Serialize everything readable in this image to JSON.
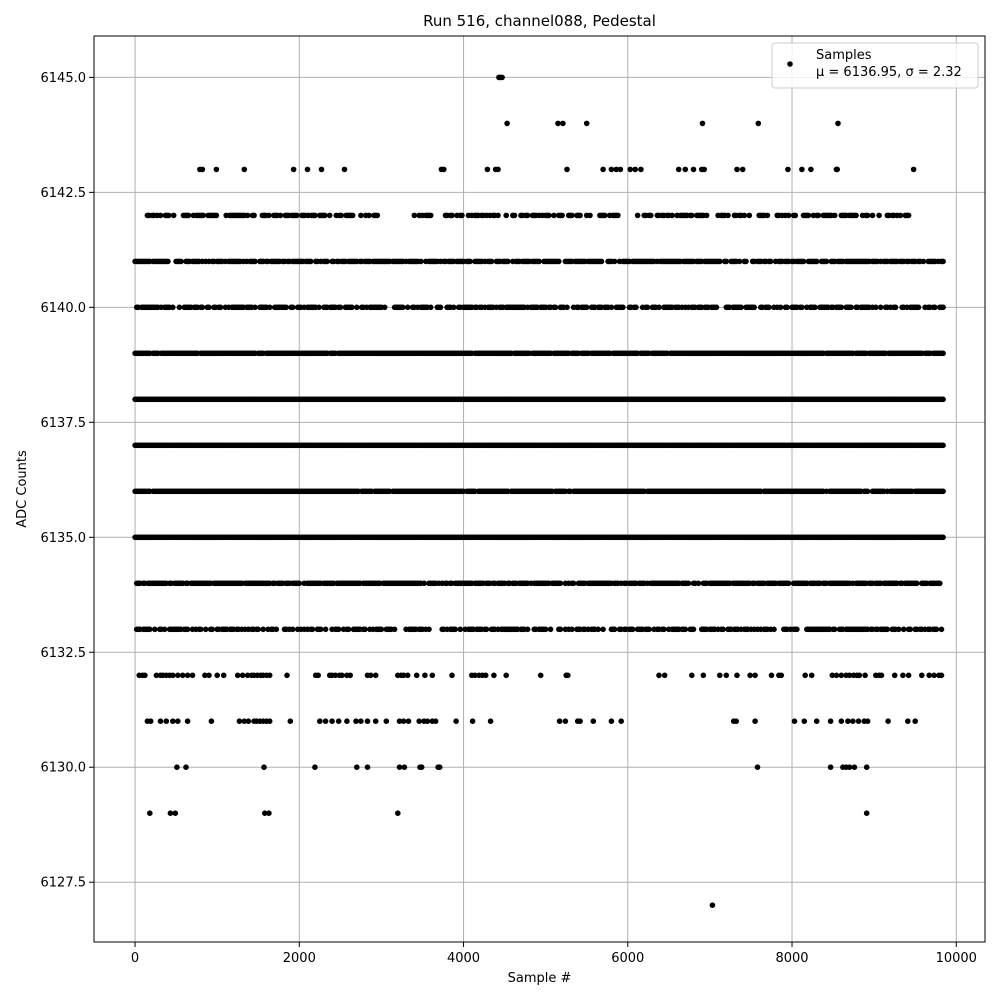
{
  "chart_data": {
    "type": "scatter",
    "title": "Run 516, channel088, Pedestal",
    "xlabel": "Sample #",
    "ylabel": "ADC Counts",
    "xlim": [
      -500,
      10350
    ],
    "ylim": [
      6126.2,
      6145.9
    ],
    "xticks": [
      0,
      2000,
      4000,
      6000,
      8000,
      10000
    ],
    "xtick_labels": [
      "0",
      "2000",
      "4000",
      "6000",
      "8000",
      "10000"
    ],
    "yticks": [
      6127.5,
      6130.0,
      6132.5,
      6135.0,
      6137.5,
      6140.0,
      6142.5,
      6145.0
    ],
    "ytick_labels": [
      "6127.5",
      "6130.0",
      "6132.5",
      "6135.0",
      "6137.5",
      "6140.0",
      "6142.5",
      "6145.0"
    ],
    "grid": true,
    "legend": {
      "position": "top-right",
      "series_label": "Samples",
      "stats_line": "μ = 6136.95, σ = 2.32"
    },
    "colors": {
      "marker": "#000000",
      "grid": "#b0b0b0",
      "axes": "#000000"
    },
    "series": [
      {
        "name": "Samples",
        "x_range": [
          0,
          9850
        ],
        "levels": [
          {
            "y": 6145,
            "x": [
              4430,
              4450,
              4470
            ]
          },
          {
            "y": 6144,
            "x": [
              4530,
              5150,
              5210,
              5500,
              6910,
              7590,
              8560
            ]
          },
          {
            "y": 6143,
            "x": [
              790,
              820,
              990,
              1330,
              1930,
              2100,
              2270,
              2550,
              3730,
              3760,
              4290,
              4390,
              4420,
              5260,
              5700,
              5800,
              5860,
              5910,
              6030,
              6090,
              6160,
              6620,
              6700,
              6800,
              6900,
              6930,
              7330,
              7400,
              7950,
              8120,
              8230,
              8540,
              8550,
              9480
            ]
          },
          {
            "y": 6142,
            "x_ranges": [
              [
                150,
                3000
              ],
              [
                3400,
                5900
              ],
              [
                6100,
                9450
              ]
            ],
            "density": 0.55
          },
          {
            "y": 6141,
            "x_ranges": [
              [
                0,
                9850
              ]
            ],
            "density": 0.75
          },
          {
            "y": 6140,
            "x_ranges": [
              [
                0,
                9850
              ]
            ],
            "density": 0.65
          },
          {
            "y": 6139,
            "x_ranges": [
              [
                0,
                9850
              ]
            ],
            "density": 0.95
          },
          {
            "y": 6138,
            "x_ranges": [
              [
                0,
                9850
              ]
            ],
            "density": 1.0
          },
          {
            "y": 6137,
            "x_ranges": [
              [
                0,
                9850
              ]
            ],
            "density": 1.0
          },
          {
            "y": 6136,
            "x_ranges": [
              [
                0,
                9850
              ]
            ],
            "density": 0.95
          },
          {
            "y": 6135,
            "x_ranges": [
              [
                0,
                9850
              ]
            ],
            "density": 1.0
          },
          {
            "y": 6134,
            "x_ranges": [
              [
                0,
                9850
              ]
            ],
            "density": 0.85
          },
          {
            "y": 6133,
            "x_ranges": [
              [
                0,
                9850
              ]
            ],
            "density": 0.6
          },
          {
            "y": 6132,
            "x": [
              50,
              90,
              120,
              260,
              310,
              340,
              380,
              420,
              460,
              520,
              580,
              640,
              700,
              850,
              900,
              1000,
              1080,
              1250,
              1310,
              1370,
              1420,
              1450,
              1490,
              1530,
              1560,
              1600,
              1640,
              1850,
              2200,
              2230,
              2370,
              2400,
              2440,
              2490,
              2520,
              2580,
              2620,
              2830,
              2870,
              2930,
              3200,
              3240,
              3270,
              3320,
              3430,
              3530,
              3620,
              3860,
              4100,
              4140,
              4190,
              4230,
              4270,
              4370,
              4520,
              4940,
              5250,
              5270,
              6380,
              6450,
              6780,
              6920,
              7120,
              7200,
              7330,
              7490,
              7550,
              7750,
              7840,
              7870,
              8160,
              8240,
              8490,
              8540,
              8600,
              8660,
              8700,
              8750,
              8790,
              8820,
              8890,
              9020,
              9060,
              9090,
              9250,
              9350,
              9420,
              9580,
              9670,
              9730,
              9790,
              9820
            ]
          },
          {
            "y": 6131,
            "x": [
              150,
              190,
              310,
              380,
              460,
              520,
              640,
              930,
              1270,
              1330,
              1380,
              1450,
              1480,
              1520,
              1560,
              1600,
              1640,
              1890,
              2250,
              2320,
              2400,
              2480,
              2580,
              2690,
              2750,
              2830,
              2930,
              3060,
              3220,
              3270,
              3330,
              3460,
              3520,
              3560,
              3620,
              3660,
              3910,
              4110,
              4330,
              5170,
              5240,
              5390,
              5420,
              5580,
              5800,
              5920,
              7290,
              7320,
              7550,
              8030,
              8150,
              8300,
              8470,
              8600,
              8680,
              8740,
              8810,
              8880,
              8920,
              9170,
              9410,
              9500
            ]
          },
          {
            "y": 6130,
            "x": [
              510,
              620,
              1570,
              2190,
              2700,
              2830,
              3220,
              3280,
              3470,
              3490,
              3690,
              3710,
              7580,
              8470,
              8620,
              8660,
              8700,
              8760,
              8910
            ]
          },
          {
            "y": 6129,
            "x": [
              180,
              430,
              490,
              1580,
              1630,
              3200,
              8910
            ]
          },
          {
            "y": 6127,
            "x": [
              7030
            ]
          }
        ]
      }
    ]
  }
}
